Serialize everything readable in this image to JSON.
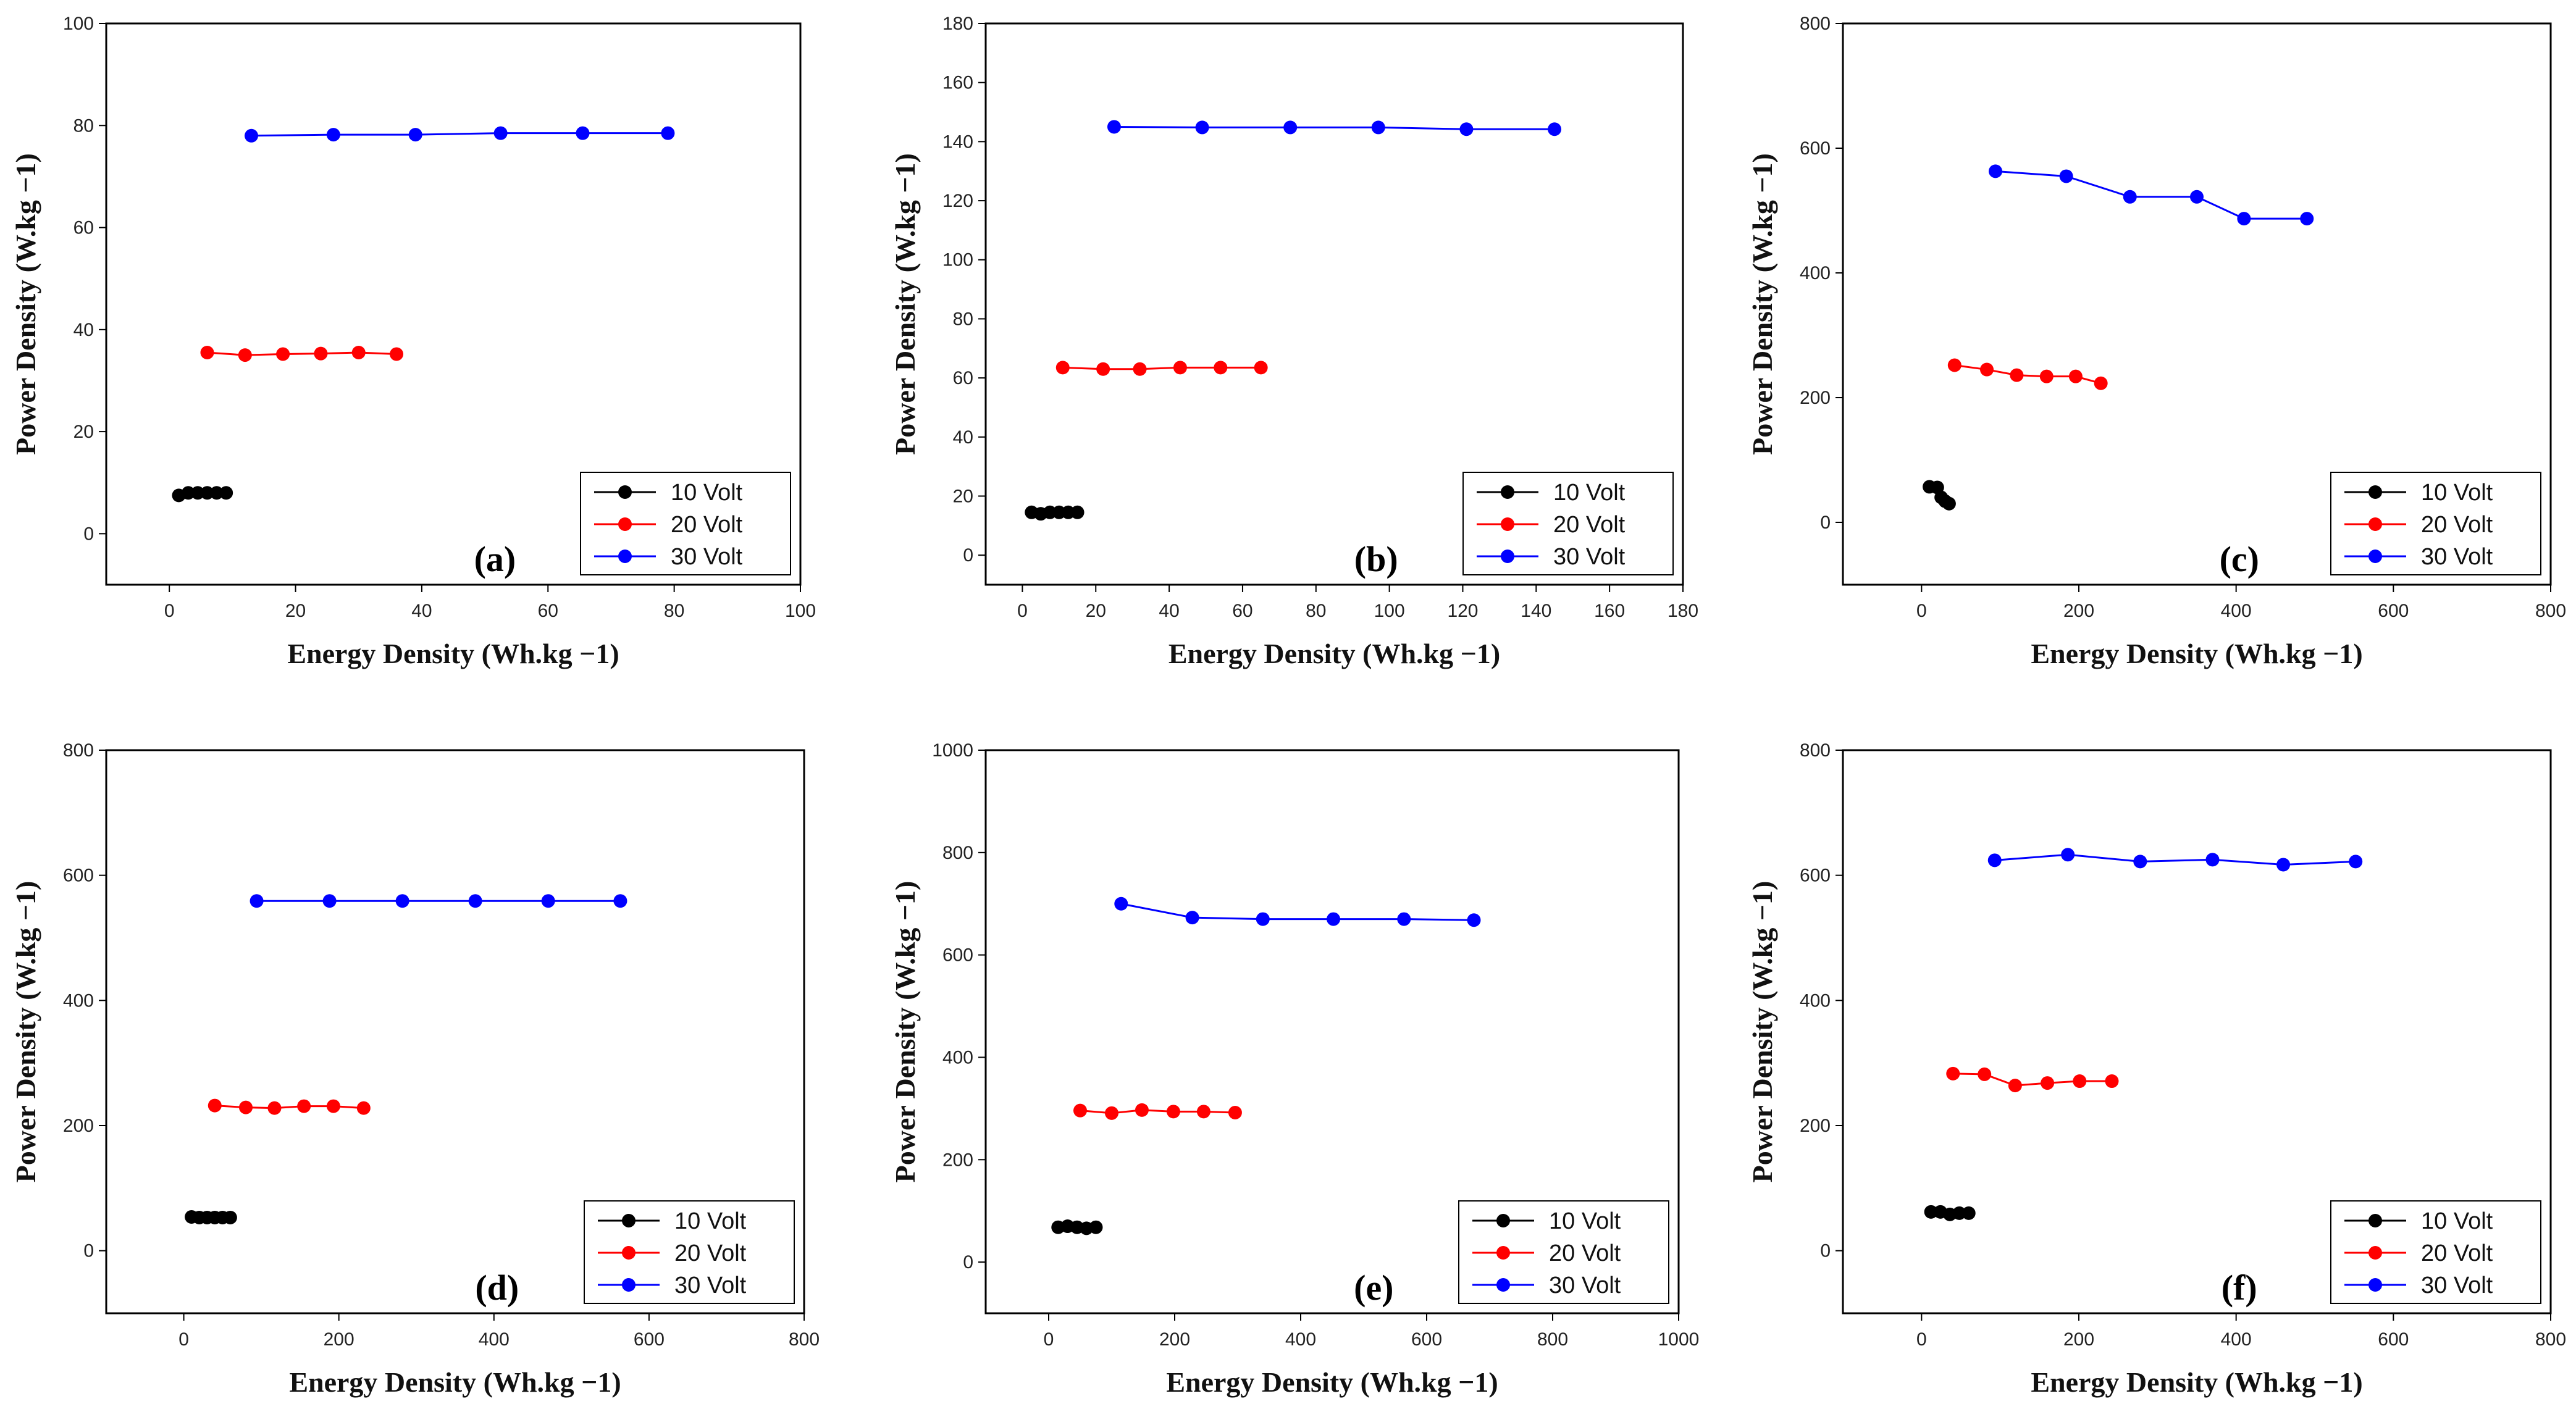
{
  "chart_data": [
    {
      "type": "line",
      "panel": "(a)",
      "xlabel": "Energy Density (Wh.kg −1)",
      "ylabel": "Power Density (W.kg −1)",
      "xlim": [
        -10,
        100
      ],
      "ylim": [
        -10,
        100
      ],
      "xticks": [
        0,
        20,
        40,
        60,
        80,
        100
      ],
      "yticks": [
        0,
        20,
        40,
        60,
        80,
        100
      ],
      "series": [
        {
          "name": "10 Volt",
          "color": "#000000",
          "x": [
            1.5,
            3,
            4.5,
            6,
            7.5,
            9
          ],
          "y": [
            7.5,
            8,
            8,
            8,
            8,
            8
          ]
        },
        {
          "name": "20 Volt",
          "color": "#ff0000",
          "x": [
            6,
            12,
            18,
            24,
            30,
            36
          ],
          "y": [
            35.5,
            35,
            35.2,
            35.3,
            35.5,
            35.2
          ]
        },
        {
          "name": "30 Volt",
          "color": "#0000ff",
          "x": [
            13,
            26,
            39,
            52.5,
            65.5,
            79
          ],
          "y": [
            78,
            78.2,
            78.2,
            78.5,
            78.5,
            78.5
          ]
        }
      ]
    },
    {
      "type": "line",
      "panel": "(b)",
      "xlabel": "Energy Density (Wh.kg −1)",
      "ylabel": "Power Density (W.kg −1)",
      "xlim": [
        -10,
        180
      ],
      "ylim": [
        -10,
        180
      ],
      "xticks": [
        0,
        20,
        40,
        60,
        80,
        100,
        120,
        140,
        160,
        180
      ],
      "yticks": [
        0,
        20,
        40,
        60,
        80,
        100,
        120,
        140,
        160,
        180
      ],
      "series": [
        {
          "name": "10 Volt",
          "color": "#000000",
          "x": [
            2.5,
            5,
            7.5,
            10,
            12.5,
            15
          ],
          "y": [
            14.5,
            14,
            14.5,
            14.5,
            14.5,
            14.5
          ]
        },
        {
          "name": "20 Volt",
          "color": "#ff0000",
          "x": [
            11,
            22,
            32,
            43,
            54,
            65
          ],
          "y": [
            63.5,
            63,
            63,
            63.5,
            63.5,
            63.5
          ]
        },
        {
          "name": "30 Volt",
          "color": "#0000ff",
          "x": [
            25,
            49,
            73,
            97,
            121,
            145
          ],
          "y": [
            145,
            144.8,
            144.8,
            144.8,
            144.2,
            144.2
          ]
        }
      ]
    },
    {
      "type": "line",
      "panel": "(c)",
      "xlabel": "Energy Density (Wh.kg −1)",
      "ylabel": "Power Density (W.kg −1)",
      "xlim": [
        -100,
        800
      ],
      "ylim": [
        -100,
        800
      ],
      "xticks": [
        0,
        200,
        400,
        600,
        800
      ],
      "yticks": [
        0,
        200,
        400,
        600,
        800
      ],
      "series": [
        {
          "name": "10 Volt",
          "color": "#000000",
          "x": [
            10,
            20,
            25,
            30,
            35
          ],
          "y": [
            57,
            56,
            40,
            34,
            30
          ]
        },
        {
          "name": "20 Volt",
          "color": "#ff0000",
          "x": [
            42,
            83,
            121,
            159,
            196,
            228
          ],
          "y": [
            252,
            245,
            236,
            234,
            234,
            223
          ]
        },
        {
          "name": "30 Volt",
          "color": "#0000ff",
          "x": [
            94,
            184,
            265,
            350,
            410,
            490
          ],
          "y": [
            563,
            555,
            522,
            522,
            487,
            487
          ]
        }
      ]
    },
    {
      "type": "line",
      "panel": "(d)",
      "xlabel": "Energy Density (Wh.kg −1)",
      "ylabel": "Power Density (W.kg −1)",
      "xlim": [
        -100,
        800
      ],
      "ylim": [
        -100,
        800
      ],
      "xticks": [
        0,
        200,
        400,
        600,
        800
      ],
      "yticks": [
        0,
        200,
        400,
        600,
        800
      ],
      "series": [
        {
          "name": "10 Volt",
          "color": "#000000",
          "x": [
            10,
            20,
            30,
            40,
            50,
            60
          ],
          "y": [
            54,
            53,
            53,
            53,
            53,
            53
          ]
        },
        {
          "name": "20 Volt",
          "color": "#ff0000",
          "x": [
            40,
            80,
            117,
            155,
            193,
            232
          ],
          "y": [
            232,
            229,
            228,
            231,
            231,
            228
          ]
        },
        {
          "name": "30 Volt",
          "color": "#0000ff",
          "x": [
            94,
            188,
            282,
            376,
            470,
            563
          ],
          "y": [
            559,
            559,
            559,
            559,
            559,
            559
          ]
        }
      ]
    },
    {
      "type": "line",
      "panel": "(e)",
      "xlabel": "Energy Density (Wh.kg −1)",
      "ylabel": "Power Density (W.kg −1)",
      "xlim": [
        -100,
        1000
      ],
      "ylim": [
        -100,
        1000
      ],
      "xticks": [
        0,
        200,
        400,
        600,
        800,
        1000
      ],
      "yticks": [
        0,
        200,
        400,
        600,
        800,
        1000
      ],
      "series": [
        {
          "name": "10 Volt",
          "color": "#000000",
          "x": [
            15,
            30,
            45,
            60,
            75
          ],
          "y": [
            68,
            70,
            68,
            66,
            68
          ]
        },
        {
          "name": "20 Volt",
          "color": "#ff0000",
          "x": [
            50,
            100,
            148,
            198,
            246,
            296
          ],
          "y": [
            296,
            291,
            297,
            294,
            294,
            292
          ]
        },
        {
          "name": "30 Volt",
          "color": "#0000ff",
          "x": [
            115,
            228,
            340,
            452,
            564,
            675
          ],
          "y": [
            700,
            673,
            670,
            670,
            670,
            668
          ]
        }
      ]
    },
    {
      "type": "line",
      "panel": "(f)",
      "xlabel": "Energy Density (Wh.kg −1)",
      "ylabel": "Power Density (W.kg −1)",
      "xlim": [
        -100,
        800
      ],
      "ylim": [
        -100,
        800
      ],
      "xticks": [
        0,
        200,
        400,
        600,
        800
      ],
      "yticks": [
        0,
        200,
        400,
        600,
        800
      ],
      "series": [
        {
          "name": "10 Volt",
          "color": "#000000",
          "x": [
            12,
            24,
            36,
            48,
            60
          ],
          "y": [
            62,
            62,
            58,
            60,
            60
          ]
        },
        {
          "name": "20 Volt",
          "color": "#ff0000",
          "x": [
            40,
            80,
            119,
            160,
            201,
            242
          ],
          "y": [
            283,
            282,
            264,
            268,
            271,
            271
          ]
        },
        {
          "name": "30 Volt",
          "color": "#0000ff",
          "x": [
            93,
            186,
            278,
            370,
            460,
            552
          ],
          "y": [
            624,
            633,
            622,
            625,
            617,
            622
          ]
        }
      ]
    }
  ]
}
